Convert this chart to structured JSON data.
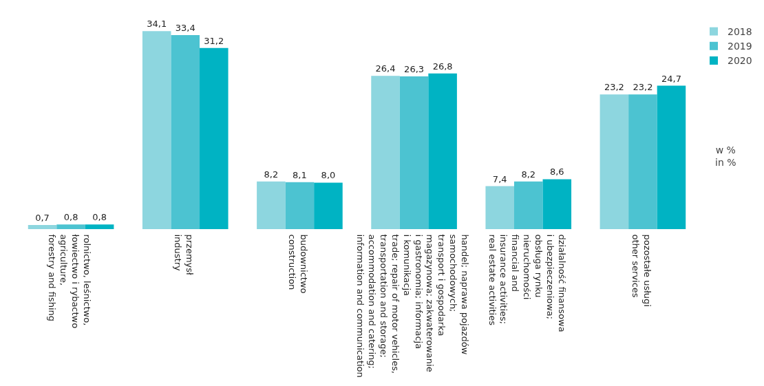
{
  "chart_data": {
    "type": "bar",
    "categories": [
      "rolnictwo, leśnictwo,\nłowiectwo i rybactwo\nagriculture,\nforestry and fishing",
      "przemysł\nindustry",
      "budownictwo\nconstruction",
      "handel; naprawa pojazdów\nsamochodowych;\ntransport i gospodarka\nmagazynowa; zakwaterowanie\ni gastronomia; informacja\ni komunikacja\ntrade; repair of motor vehicles,\ntransportation and storage;\naccommodation and catering;\ninformation and communication",
      "działalność finansowa\ni ubezpieczeniowa;\nobsługa rynku\nnieruchomości\nfinancial and\ninsurance activities;\nreal estate activities",
      "pozostałe usługi\nother services"
    ],
    "series": [
      {
        "name": "2018",
        "color": "#8dd6df",
        "values": [
          0.7,
          34.1,
          8.2,
          26.4,
          7.4,
          23.2
        ],
        "value_labels": [
          "0,7",
          "34,1",
          "8,2",
          "26,4",
          "7,4",
          "23,2"
        ]
      },
      {
        "name": "2019",
        "color": "#4cc3d1",
        "values": [
          0.8,
          33.4,
          8.1,
          26.3,
          8.2,
          23.2
        ],
        "value_labels": [
          "0,8",
          "33,4",
          "8,1",
          "26,3",
          "8,2",
          "23,2"
        ]
      },
      {
        "name": "2020",
        "color": "#00b3c3",
        "values": [
          0.8,
          31.2,
          8.0,
          26.8,
          8.6,
          24.7
        ],
        "value_labels": [
          "0,8",
          "31,2",
          "8,0",
          "26,8",
          "8,6",
          "24,7"
        ]
      }
    ],
    "legend": "top right",
    "annotations": [
      "w %\nin %"
    ]
  }
}
